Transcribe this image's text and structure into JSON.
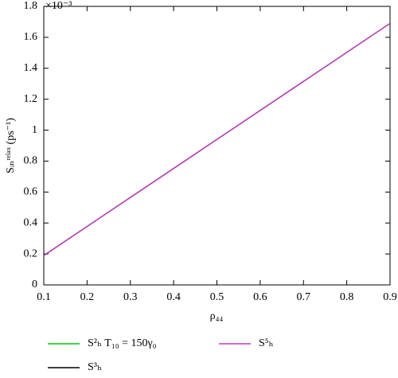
{
  "chart_data": {
    "type": "line",
    "y_scale_label": "×10⁻³",
    "xlabel": "ρ₄₄",
    "ylabel": "Sᵢₙʳᵉˡᵃˣ (ps⁻¹)",
    "x": [
      0.1,
      0.9
    ],
    "series": [
      {
        "name": "S²ₕ T₁₀ = 150γ₀",
        "color": "#00cc00",
        "values": [
          0.19,
          1.69
        ]
      },
      {
        "name": "S³ₕ",
        "color": "#000000",
        "values": [
          0.19,
          1.69
        ]
      },
      {
        "name": "S⁵ₕ",
        "color": "#cc33cc",
        "values": [
          0.19,
          1.69
        ]
      }
    ],
    "xlim": [
      0.1,
      0.9
    ],
    "xticks": [
      0.1,
      0.2,
      0.3,
      0.4,
      0.5,
      0.6,
      0.7,
      0.8,
      0.9
    ],
    "ylim": [
      0,
      1.8
    ],
    "yticks": [
      0,
      0.2,
      0.4,
      0.6,
      0.8,
      1,
      1.2,
      1.4,
      1.6,
      1.8
    ]
  }
}
